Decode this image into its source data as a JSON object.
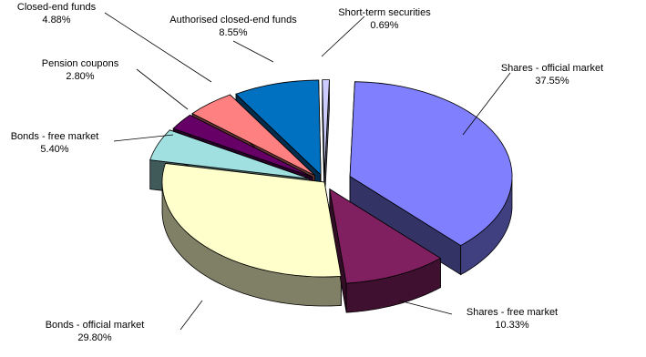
{
  "chart_data": {
    "type": "pie",
    "style": "3d-exploded",
    "title": "",
    "slices": [
      {
        "label": "Shares - official market",
        "value": 37.55,
        "value_label": "37.55%",
        "color": "#8080ff"
      },
      {
        "label": "Shares - free market",
        "value": 10.33,
        "value_label": "10.33%",
        "color": "#802060"
      },
      {
        "label": "Bonds - official market",
        "value": 29.8,
        "value_label": "29.80%",
        "color": "#ffffcc"
      },
      {
        "label": "Bonds - free market",
        "value": 5.4,
        "value_label": "5.40%",
        "color": "#a0e0e0"
      },
      {
        "label": "Pension coupons",
        "value": 2.8,
        "value_label": "2.80%",
        "color": "#660066"
      },
      {
        "label": "Closed-end funds",
        "value": 4.88,
        "value_label": "4.88%",
        "color": "#ff8080"
      },
      {
        "label": "Authorised closed-end funds",
        "value": 8.55,
        "value_label": "8.55%",
        "color": "#0070c0"
      },
      {
        "label": "Short-term securities",
        "value": 0.69,
        "value_label": "0.69%",
        "color": "#ccccff"
      }
    ]
  }
}
